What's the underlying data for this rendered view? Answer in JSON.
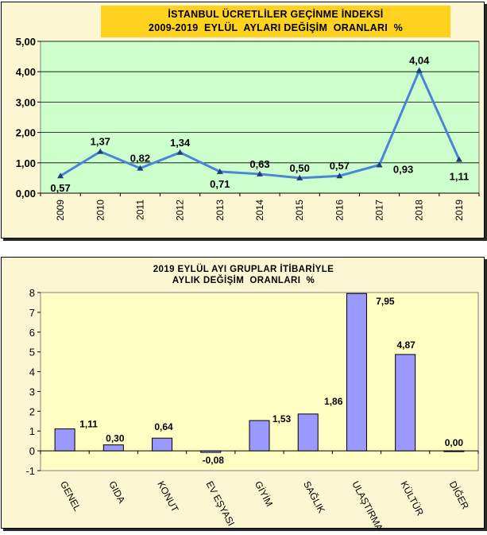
{
  "chart_data": [
    {
      "type": "line",
      "title_lines": [
        "İSTANBUL ÜCRETLİLER GEÇİNME İNDEKSİ",
        "2009-2019  EYLÜL  AYLARI DEĞİŞİM  ORANLARI  %"
      ],
      "categories": [
        "2009",
        "2010",
        "2011",
        "2012",
        "2013",
        "2014",
        "2015",
        "2016",
        "2017",
        "2018",
        "2019"
      ],
      "values": [
        0.57,
        1.37,
        0.82,
        1.34,
        0.71,
        0.63,
        0.5,
        0.57,
        0.93,
        4.04,
        1.11
      ],
      "data_labels": [
        "0,57",
        "1,37",
        "0,82",
        "1,34",
        "0,71",
        "0,63",
        "0,50",
        "0,57",
        "0,93",
        "4,04",
        "1,11"
      ],
      "yticks": [
        "0,00",
        "1,00",
        "2,00",
        "3,00",
        "4,00",
        "5,00"
      ],
      "ylim": [
        0,
        5
      ],
      "grid": true,
      "colors": {
        "plot_bg": "#ccffcc",
        "line": "#4a86d6",
        "marker": "#1f3d7a",
        "panel_bg": "#fcf6d2",
        "title_bg": "#ffd21e"
      }
    },
    {
      "type": "bar",
      "title_lines": [
        "2019 EYLÜL AYI GRUPLAR İTİBARİYLE",
        "AYLIK DEĞİŞİM  ORANLARI  %"
      ],
      "categories": [
        "GENEL",
        "GIDA",
        "KONUT",
        "EV EŞYASI",
        "GİYİM",
        "SAĞLIK",
        "ULAŞTIRMA",
        "KÜLTÜR",
        "DİĞER"
      ],
      "values": [
        1.11,
        0.3,
        0.64,
        -0.08,
        1.53,
        1.86,
        7.95,
        4.87,
        0.0
      ],
      "data_labels": [
        "1,11",
        "0,30",
        "0,64",
        "-0,08",
        "1,53",
        "1,86",
        "7,95",
        "4,87",
        "0,00"
      ],
      "yticks": [
        "-1",
        "0",
        "1",
        "2",
        "3",
        "4",
        "5",
        "6",
        "7",
        "8"
      ],
      "ylim": [
        -1,
        8
      ],
      "grid": false,
      "colors": {
        "plot_bg": "#ffffc4",
        "bar": "#9999ff",
        "bar_border": "#000000",
        "panel_bg": "#fcf6d2"
      }
    }
  ]
}
